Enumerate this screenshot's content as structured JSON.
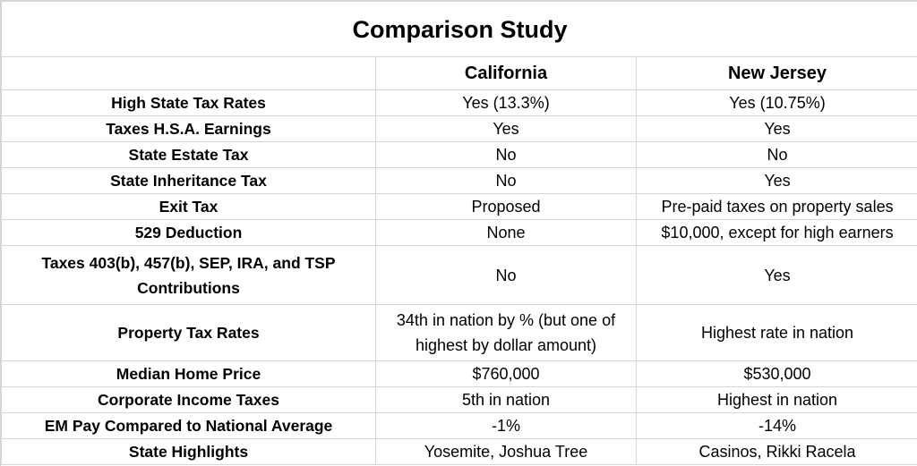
{
  "title": "Comparison Study",
  "columns": [
    "",
    "California",
    "New Jersey"
  ],
  "rows": [
    {
      "label": "High State Tax Rates",
      "california": "Yes (13.3%)",
      "new_jersey": "Yes (10.75%)"
    },
    {
      "label": "Taxes H.S.A. Earnings",
      "california": "Yes",
      "new_jersey": "Yes"
    },
    {
      "label": "State Estate Tax",
      "california": "No",
      "new_jersey": "No"
    },
    {
      "label": "State Inheritance Tax",
      "california": "No",
      "new_jersey": "Yes"
    },
    {
      "label": "Exit Tax",
      "california": "Proposed",
      "new_jersey": "Pre-paid taxes on property sales"
    },
    {
      "label": "529 Deduction",
      "california": "None",
      "new_jersey": "$10,000, except for high earners"
    },
    {
      "label": "Taxes 403(b), 457(b), SEP, IRA, and TSP Contributions",
      "california": "No",
      "new_jersey": "Yes"
    },
    {
      "label": "Property Tax Rates",
      "california": "34th in nation by % (but one of highest by dollar amount)",
      "new_jersey": "Highest rate in nation"
    },
    {
      "label": "Median Home Price",
      "california": "$760,000",
      "new_jersey": "$530,000"
    },
    {
      "label": "Corporate Income Taxes",
      "california": "5th in nation",
      "new_jersey": "Highest in nation"
    },
    {
      "label": "EM Pay Compared to National Average",
      "california": "-1%",
      "new_jersey": "-14%"
    },
    {
      "label": "State Highlights",
      "california": "Yosemite, Joshua Tree",
      "new_jersey": "Casinos, Rikki Racela"
    }
  ]
}
